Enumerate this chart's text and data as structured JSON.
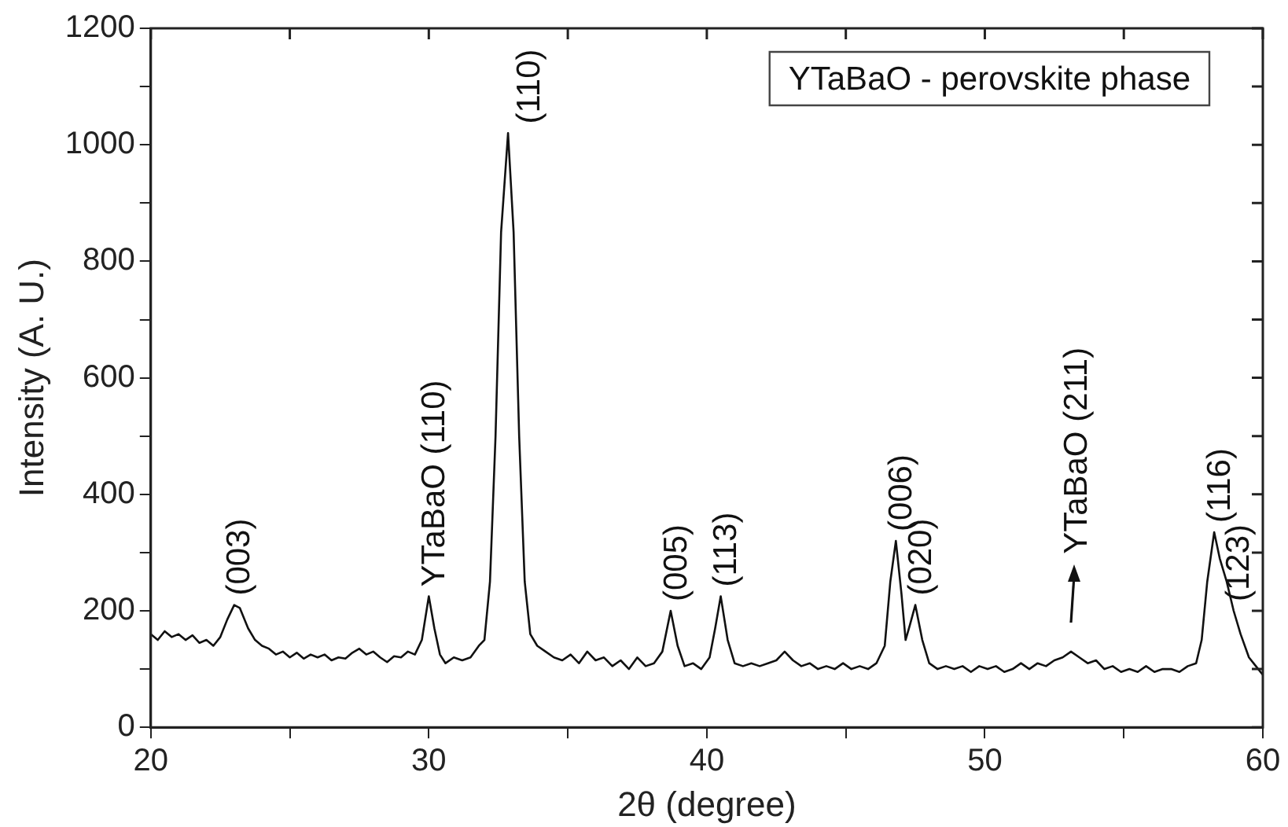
{
  "chart_data": {
    "type": "line",
    "xlabel": "2θ (degree)",
    "ylabel": "Intensity (A. U.)",
    "color": "#111111",
    "marker": "none",
    "grid": false,
    "legend": false,
    "xlim": [
      20,
      60
    ],
    "ylim": [
      0,
      1200
    ],
    "xticks": [
      20,
      {
        "value": 25,
        "label": null
      },
      30,
      {
        "value": 35,
        "label": null
      },
      40,
      {
        "value": 45,
        "label": null
      },
      50,
      {
        "value": 55,
        "label": null
      },
      60
    ],
    "yticks": [
      0,
      {
        "value": 100,
        "label": null
      },
      200,
      {
        "value": 300,
        "label": null
      },
      400,
      {
        "value": 500,
        "label": null
      },
      600,
      {
        "value": 700,
        "label": null
      },
      800,
      {
        "value": 900,
        "label": null
      },
      1000,
      {
        "value": 1100,
        "label": null
      },
      1200
    ],
    "x": [
      20,
      20.25,
      20.5,
      20.75,
      21,
      21.25,
      21.5,
      21.75,
      22,
      22.25,
      22.5,
      22.75,
      23,
      23.2,
      23.5,
      23.75,
      24,
      24.25,
      24.5,
      24.75,
      25,
      25.25,
      25.5,
      25.75,
      26,
      26.25,
      26.5,
      26.75,
      27,
      27.25,
      27.5,
      27.75,
      28,
      28.25,
      28.5,
      28.75,
      29,
      29.25,
      29.5,
      29.75,
      30,
      30.2,
      30.4,
      30.6,
      30.9,
      31.2,
      31.5,
      31.8,
      32,
      32.2,
      32.4,
      32.6,
      32.85,
      33.05,
      33.25,
      33.45,
      33.65,
      33.9,
      34.2,
      34.5,
      34.8,
      35.1,
      35.4,
      35.7,
      36,
      36.3,
      36.6,
      36.9,
      37.2,
      37.5,
      37.8,
      38.1,
      38.4,
      38.7,
      38.95,
      39.2,
      39.5,
      39.8,
      40.1,
      40.3,
      40.5,
      40.75,
      41,
      41.3,
      41.6,
      41.9,
      42.2,
      42.5,
      42.8,
      43.1,
      43.4,
      43.7,
      44,
      44.3,
      44.6,
      44.9,
      45.2,
      45.5,
      45.8,
      46.1,
      46.4,
      46.6,
      46.8,
      47,
      47.15,
      47.3,
      47.5,
      47.75,
      48,
      48.3,
      48.6,
      48.9,
      49.2,
      49.5,
      49.8,
      50.1,
      50.4,
      50.7,
      51,
      51.3,
      51.6,
      51.9,
      52.2,
      52.5,
      52.8,
      53.1,
      53.4,
      53.7,
      54,
      54.3,
      54.6,
      54.9,
      55.2,
      55.5,
      55.8,
      56.1,
      56.4,
      56.7,
      57,
      57.3,
      57.6,
      57.8,
      58,
      58.25,
      58.45,
      58.7,
      58.95,
      59.2,
      59.5,
      59.75,
      60
    ],
    "values": [
      160,
      150,
      165,
      155,
      160,
      150,
      158,
      145,
      150,
      140,
      155,
      185,
      210,
      205,
      170,
      150,
      140,
      135,
      125,
      130,
      120,
      128,
      118,
      125,
      120,
      125,
      115,
      120,
      118,
      128,
      135,
      125,
      130,
      120,
      112,
      122,
      120,
      130,
      125,
      150,
      225,
      170,
      125,
      110,
      120,
      115,
      120,
      140,
      150,
      250,
      500,
      850,
      1020,
      850,
      500,
      250,
      160,
      140,
      130,
      120,
      115,
      125,
      110,
      130,
      115,
      120,
      105,
      115,
      100,
      120,
      105,
      110,
      130,
      200,
      140,
      105,
      110,
      100,
      120,
      170,
      225,
      150,
      110,
      105,
      110,
      105,
      110,
      115,
      130,
      115,
      105,
      110,
      100,
      105,
      100,
      110,
      100,
      105,
      100,
      110,
      140,
      250,
      320,
      230,
      150,
      175,
      210,
      150,
      110,
      100,
      105,
      100,
      105,
      95,
      105,
      100,
      105,
      95,
      100,
      110,
      100,
      110,
      105,
      115,
      120,
      130,
      120,
      110,
      115,
      100,
      105,
      95,
      100,
      95,
      105,
      95,
      100,
      100,
      95,
      105,
      110,
      150,
      250,
      335,
      290,
      250,
      200,
      160,
      120,
      105,
      90
    ],
    "annotations": [
      "YTaBaO - perovskite phase",
      {
        "text": "(003)",
        "x": 23,
        "y": 210
      },
      {
        "text": "YTaBaO (110)",
        "x": 30,
        "y": 225
      },
      {
        "text": "(110)",
        "x": 32.85,
        "y": 1020
      },
      {
        "text": "(005)",
        "x": 38.7,
        "y": 200
      },
      {
        "text": "(113)",
        "x": 40.5,
        "y": 225
      },
      {
        "text": "(006)",
        "x": 46.8,
        "y": 320
      },
      {
        "text": "(020)",
        "x": 47.5,
        "y": 210
      },
      {
        "text": "YTaBaO (211)",
        "x": 53.1,
        "y": 130
      },
      {
        "text": "(116)",
        "x": 58.25,
        "y": 335
      },
      {
        "text": "(123)",
        "x": 58.95,
        "y": 200
      }
    ]
  }
}
